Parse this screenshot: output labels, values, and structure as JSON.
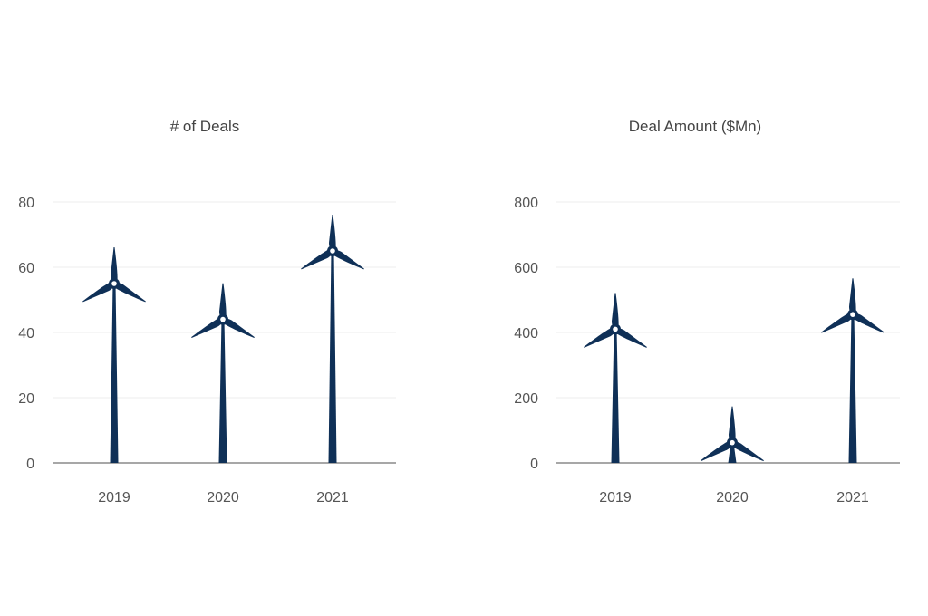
{
  "colors": {
    "turbine": "#0f3057",
    "gridline": "#ececec",
    "axis": "#8a8a8a",
    "text": "#555555"
  },
  "icons": {
    "mark": "wind-turbine-icon"
  },
  "chart_data": [
    {
      "type": "bar",
      "title": "# of Deals",
      "categories": [
        "2019",
        "2020",
        "2021"
      ],
      "values": [
        55,
        44,
        65
      ],
      "ylim": [
        0,
        80
      ],
      "yticks": [
        "0",
        "20",
        "40",
        "60",
        "80"
      ],
      "grid": true,
      "legend": "none"
    },
    {
      "type": "bar",
      "title": "Deal Amount ($Mn)",
      "categories": [
        "2019",
        "2020",
        "2021"
      ],
      "values": [
        410,
        62,
        455
      ],
      "ylim": [
        0,
        800
      ],
      "yticks": [
        "0",
        "200",
        "400",
        "600",
        "800"
      ],
      "grid": true,
      "legend": "none"
    }
  ]
}
